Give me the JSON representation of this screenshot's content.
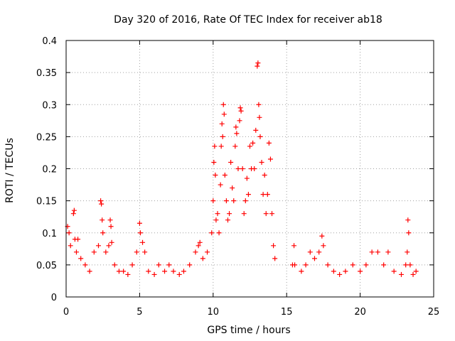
{
  "chart_data": {
    "type": "scatter",
    "title": "Day 320 of 2016, Rate Of TEC Index for receiver ab18",
    "xlabel": "GPS time / hours",
    "ylabel": "ROTI / TECUs",
    "xlim": [
      0,
      25
    ],
    "ylim": [
      0,
      0.4
    ],
    "xticks": [
      0,
      5,
      10,
      15,
      20,
      25
    ],
    "yticks": [
      0,
      0.05,
      0.1,
      0.15,
      0.2,
      0.25,
      0.3,
      0.35,
      0.4
    ],
    "xtick_labels": [
      "0",
      "5",
      "10",
      "15",
      "20",
      "25"
    ],
    "ytick_labels": [
      "0",
      "0.05",
      "0.1",
      "0.15",
      "0.2",
      "0.25",
      "0.3",
      "0.35",
      "0.4"
    ],
    "grid": true,
    "marker": "+",
    "color": "#ff0000",
    "series": [
      {
        "name": "ROTI",
        "points": [
          [
            0.1,
            0.11
          ],
          [
            0.2,
            0.1
          ],
          [
            0.3,
            0.08
          ],
          [
            0.5,
            0.13
          ],
          [
            0.55,
            0.135
          ],
          [
            0.6,
            0.09
          ],
          [
            0.7,
            0.07
          ],
          [
            0.8,
            0.09
          ],
          [
            1.0,
            0.06
          ],
          [
            1.3,
            0.05
          ],
          [
            1.6,
            0.04
          ],
          [
            1.9,
            0.07
          ],
          [
            2.2,
            0.08
          ],
          [
            2.35,
            0.15
          ],
          [
            2.4,
            0.145
          ],
          [
            2.45,
            0.12
          ],
          [
            2.5,
            0.1
          ],
          [
            2.7,
            0.07
          ],
          [
            2.9,
            0.08
          ],
          [
            3.0,
            0.12
          ],
          [
            3.05,
            0.11
          ],
          [
            3.1,
            0.085
          ],
          [
            3.3,
            0.05
          ],
          [
            3.6,
            0.04
          ],
          [
            3.9,
            0.04
          ],
          [
            4.2,
            0.035
          ],
          [
            4.5,
            0.05
          ],
          [
            4.8,
            0.07
          ],
          [
            5.0,
            0.115
          ],
          [
            5.05,
            0.1
          ],
          [
            5.2,
            0.085
          ],
          [
            5.35,
            0.07
          ],
          [
            5.6,
            0.04
          ],
          [
            6.0,
            0.035
          ],
          [
            6.3,
            0.05
          ],
          [
            6.7,
            0.04
          ],
          [
            7.0,
            0.05
          ],
          [
            7.3,
            0.04
          ],
          [
            7.7,
            0.035
          ],
          [
            8.0,
            0.04
          ],
          [
            8.4,
            0.05
          ],
          [
            8.8,
            0.07
          ],
          [
            9.0,
            0.08
          ],
          [
            9.1,
            0.085
          ],
          [
            9.3,
            0.06
          ],
          [
            9.6,
            0.07
          ],
          [
            9.9,
            0.1
          ],
          [
            10.0,
            0.15
          ],
          [
            10.05,
            0.21
          ],
          [
            10.1,
            0.235
          ],
          [
            10.15,
            0.19
          ],
          [
            10.2,
            0.12
          ],
          [
            10.3,
            0.13
          ],
          [
            10.4,
            0.1
          ],
          [
            10.5,
            0.175
          ],
          [
            10.55,
            0.235
          ],
          [
            10.6,
            0.27
          ],
          [
            10.65,
            0.25
          ],
          [
            10.7,
            0.3
          ],
          [
            10.75,
            0.285
          ],
          [
            10.8,
            0.19
          ],
          [
            10.9,
            0.15
          ],
          [
            11.0,
            0.12
          ],
          [
            11.1,
            0.13
          ],
          [
            11.2,
            0.21
          ],
          [
            11.3,
            0.17
          ],
          [
            11.4,
            0.15
          ],
          [
            11.5,
            0.235
          ],
          [
            11.55,
            0.265
          ],
          [
            11.6,
            0.255
          ],
          [
            11.7,
            0.2
          ],
          [
            11.8,
            0.275
          ],
          [
            11.85,
            0.295
          ],
          [
            11.9,
            0.29
          ],
          [
            12.0,
            0.2
          ],
          [
            12.1,
            0.13
          ],
          [
            12.2,
            0.15
          ],
          [
            12.3,
            0.185
          ],
          [
            12.4,
            0.16
          ],
          [
            12.5,
            0.235
          ],
          [
            12.6,
            0.2
          ],
          [
            12.7,
            0.24
          ],
          [
            12.8,
            0.2
          ],
          [
            12.9,
            0.26
          ],
          [
            13.0,
            0.36
          ],
          [
            13.05,
            0.365
          ],
          [
            13.1,
            0.3
          ],
          [
            13.15,
            0.28
          ],
          [
            13.2,
            0.25
          ],
          [
            13.3,
            0.21
          ],
          [
            13.4,
            0.16
          ],
          [
            13.5,
            0.19
          ],
          [
            13.6,
            0.13
          ],
          [
            13.7,
            0.16
          ],
          [
            13.8,
            0.24
          ],
          [
            13.9,
            0.215
          ],
          [
            14.0,
            0.13
          ],
          [
            14.1,
            0.08
          ],
          [
            14.2,
            0.06
          ],
          [
            15.4,
            0.05
          ],
          [
            15.5,
            0.08
          ],
          [
            15.55,
            0.05
          ],
          [
            16.0,
            0.04
          ],
          [
            16.3,
            0.05
          ],
          [
            16.6,
            0.07
          ],
          [
            16.9,
            0.06
          ],
          [
            17.2,
            0.07
          ],
          [
            17.4,
            0.095
          ],
          [
            17.5,
            0.08
          ],
          [
            17.8,
            0.05
          ],
          [
            18.2,
            0.04
          ],
          [
            18.6,
            0.035
          ],
          [
            19.0,
            0.04
          ],
          [
            19.5,
            0.05
          ],
          [
            20.0,
            0.04
          ],
          [
            20.4,
            0.05
          ],
          [
            20.8,
            0.07
          ],
          [
            21.2,
            0.07
          ],
          [
            21.6,
            0.05
          ],
          [
            21.9,
            0.07
          ],
          [
            22.3,
            0.04
          ],
          [
            22.8,
            0.035
          ],
          [
            23.1,
            0.05
          ],
          [
            23.2,
            0.07
          ],
          [
            23.25,
            0.12
          ],
          [
            23.3,
            0.1
          ],
          [
            23.4,
            0.05
          ],
          [
            23.6,
            0.035
          ],
          [
            23.8,
            0.04
          ]
        ]
      }
    ]
  }
}
